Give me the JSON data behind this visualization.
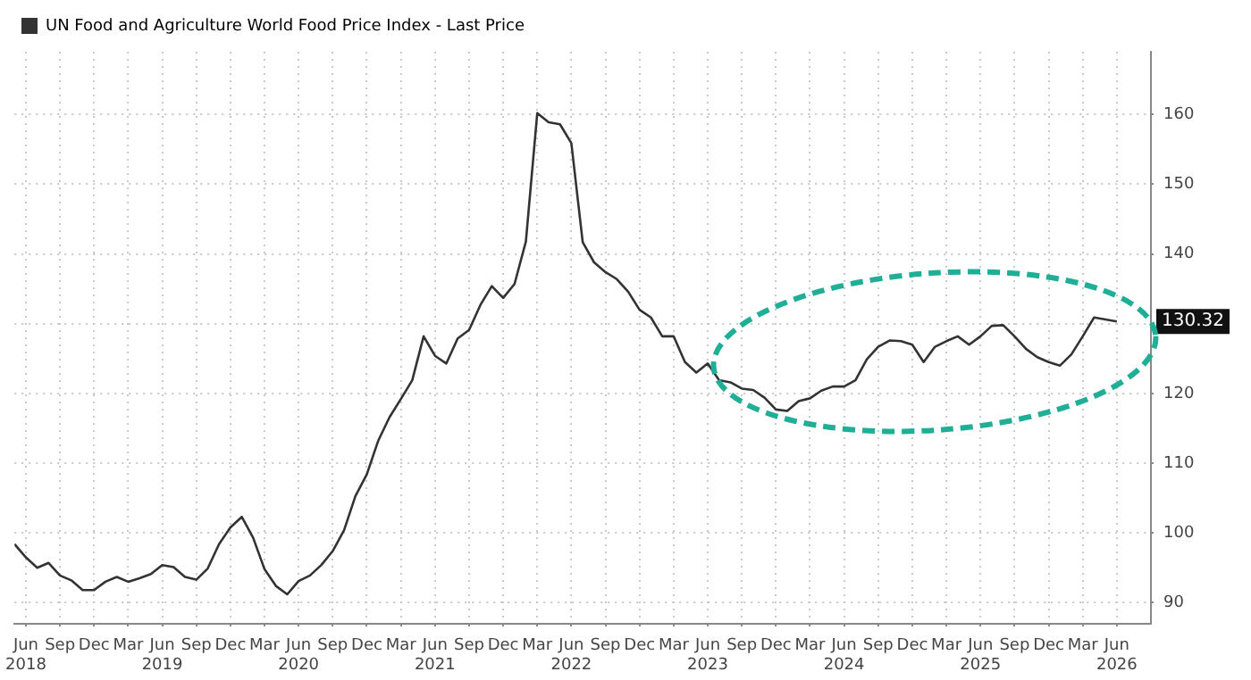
{
  "chart_data": {
    "type": "line",
    "legend": "top left",
    "grid": true,
    "marker": "none",
    "line_style": "solid",
    "xlim": [
      "2018-05",
      "2026-09"
    ],
    "xticks": [
      {
        "value": "2018-06",
        "label": "Jun\n2018"
      },
      {
        "value": "2018-09",
        "label": "Sep"
      },
      {
        "value": "2018-12",
        "label": "Dec"
      },
      {
        "value": "2019-03",
        "label": "Mar"
      },
      {
        "value": "2019-06",
        "label": "Jun\n2019"
      },
      {
        "value": "2019-09",
        "label": "Sep"
      },
      {
        "value": "2019-12",
        "label": "Dec"
      },
      {
        "value": "2020-03",
        "label": "Mar"
      },
      {
        "value": "2020-06",
        "label": "Jun\n2020"
      },
      {
        "value": "2020-09",
        "label": "Sep"
      },
      {
        "value": "2020-12",
        "label": "Dec"
      },
      {
        "value": "2021-03",
        "label": "Mar"
      },
      {
        "value": "2021-06",
        "label": "Jun\n2021"
      },
      {
        "value": "2021-09",
        "label": "Sep"
      },
      {
        "value": "2021-12",
        "label": "Dec"
      },
      {
        "value": "2022-03",
        "label": "Mar"
      },
      {
        "value": "2022-06",
        "label": "Jun\n2022"
      },
      {
        "value": "2022-09",
        "label": "Sep"
      },
      {
        "value": "2022-12",
        "label": "Dec"
      },
      {
        "value": "2023-03",
        "label": "Mar"
      },
      {
        "value": "2023-06",
        "label": "Jun\n2023"
      },
      {
        "value": "2023-09",
        "label": "Sep"
      },
      {
        "value": "2023-12",
        "label": "Dec"
      },
      {
        "value": "2024-03",
        "label": "Mar"
      },
      {
        "value": "2024-06",
        "label": "Jun\n2024"
      },
      {
        "value": "2024-09",
        "label": "Sep"
      },
      {
        "value": "2024-12",
        "label": "Dec"
      },
      {
        "value": "2025-03",
        "label": "Mar"
      },
      {
        "value": "2025-06",
        "label": "Jun\n2025"
      },
      {
        "value": "2025-09",
        "label": "Sep"
      },
      {
        "value": "2025-12",
        "label": "Dec"
      },
      {
        "value": "2026-03",
        "label": "Mar"
      },
      {
        "value": "2026-06",
        "label": "Jun\n2026"
      }
    ],
    "ylim": [
      87,
      169
    ],
    "yticks": [
      90,
      100,
      110,
      120,
      {
        "value": 130,
        "label": null
      },
      140,
      150,
      160
    ],
    "annotations": [
      "130.32"
    ],
    "series": [
      {
        "name": "UN Food and Agriculture World Food Price Index - Last Price",
        "color": "#333333",
        "x": [
          "2018-05",
          "2018-06",
          "2018-07",
          "2018-08",
          "2018-09",
          "2018-10",
          "2018-11",
          "2018-12",
          "2019-01",
          "2019-02",
          "2019-03",
          "2019-04",
          "2019-05",
          "2019-06",
          "2019-07",
          "2019-08",
          "2019-09",
          "2019-10",
          "2019-11",
          "2019-12",
          "2020-01",
          "2020-02",
          "2020-03",
          "2020-04",
          "2020-05",
          "2020-06",
          "2020-07",
          "2020-08",
          "2020-09",
          "2020-10",
          "2020-11",
          "2020-12",
          "2021-01",
          "2021-02",
          "2021-03",
          "2021-04",
          "2021-05",
          "2021-06",
          "2021-07",
          "2021-08",
          "2021-09",
          "2021-10",
          "2021-11",
          "2021-12",
          "2022-01",
          "2022-02",
          "2022-03",
          "2022-04",
          "2022-05",
          "2022-06",
          "2022-07",
          "2022-08",
          "2022-09",
          "2022-10",
          "2022-11",
          "2022-12",
          "2023-01",
          "2023-02",
          "2023-03",
          "2023-04",
          "2023-05",
          "2023-06",
          "2023-07",
          "2023-08",
          "2023-09",
          "2023-10",
          "2023-11",
          "2023-12",
          "2024-01",
          "2024-02",
          "2024-03",
          "2024-04",
          "2024-05",
          "2024-06",
          "2024-07",
          "2024-08",
          "2024-09",
          "2024-10",
          "2024-11",
          "2024-12",
          "2025-01",
          "2025-02",
          "2025-03",
          "2025-04",
          "2025-05",
          "2025-06",
          "2025-07",
          "2025-08",
          "2025-09",
          "2025-10",
          "2025-11",
          "2025-12",
          "2026-01",
          "2026-02",
          "2026-03",
          "2026-04",
          "2026-05",
          "2026-06"
        ],
        "values": [
          98.4,
          96.5,
          95.0,
          95.7,
          93.9,
          93.2,
          91.8,
          91.8,
          93.0,
          93.7,
          93.0,
          93.5,
          94.1,
          95.4,
          95.1,
          93.7,
          93.3,
          94.9,
          98.4,
          100.8,
          102.3,
          99.3,
          94.8,
          92.4,
          91.2,
          93.1,
          93.9,
          95.4,
          97.4,
          100.4,
          105.3,
          108.4,
          113.2,
          116.6,
          119.2,
          121.9,
          128.2,
          125.4,
          124.3,
          127.9,
          129.1,
          132.7,
          135.4,
          133.7,
          135.7,
          141.8,
          160.2,
          158.9,
          158.6,
          155.9,
          141.7,
          138.8,
          137.4,
          136.4,
          134.6,
          132.0,
          130.9,
          128.2,
          128.2,
          124.5,
          123.0,
          124.3,
          121.9,
          121.6,
          120.7,
          120.5,
          119.4,
          117.7,
          117.5,
          118.9,
          119.3,
          120.4,
          121.0,
          121.0,
          121.9,
          124.9,
          126.7,
          127.6,
          127.5,
          127.0,
          124.5,
          126.7,
          127.5,
          128.2,
          127.0,
          128.2,
          129.7,
          129.8,
          128.2,
          126.4,
          125.2,
          124.5,
          124.0,
          125.6,
          128.2,
          130.9,
          130.6,
          130.32
        ]
      }
    ]
  }
}
